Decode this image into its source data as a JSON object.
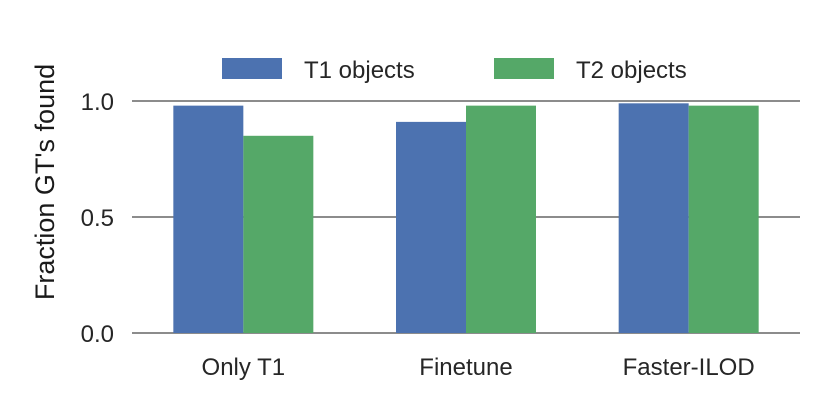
{
  "chart_data": {
    "type": "bar",
    "categories": [
      "Only T1",
      "Finetune",
      "Faster-ILOD"
    ],
    "series": [
      {
        "name": "T1 objects",
        "values": [
          0.98,
          0.91,
          0.99
        ],
        "color": "#4c72b0"
      },
      {
        "name": "T2 objects",
        "values": [
          0.85,
          0.98,
          0.98
        ],
        "color": "#55a868"
      }
    ],
    "ylabel": "Fraction GT's found",
    "xlabel": "",
    "ylim": [
      0,
      1.1
    ],
    "yticks": [
      "0.0",
      "0.5",
      "1.0"
    ],
    "grid": "horizontal",
    "legend_position": "top-center"
  }
}
